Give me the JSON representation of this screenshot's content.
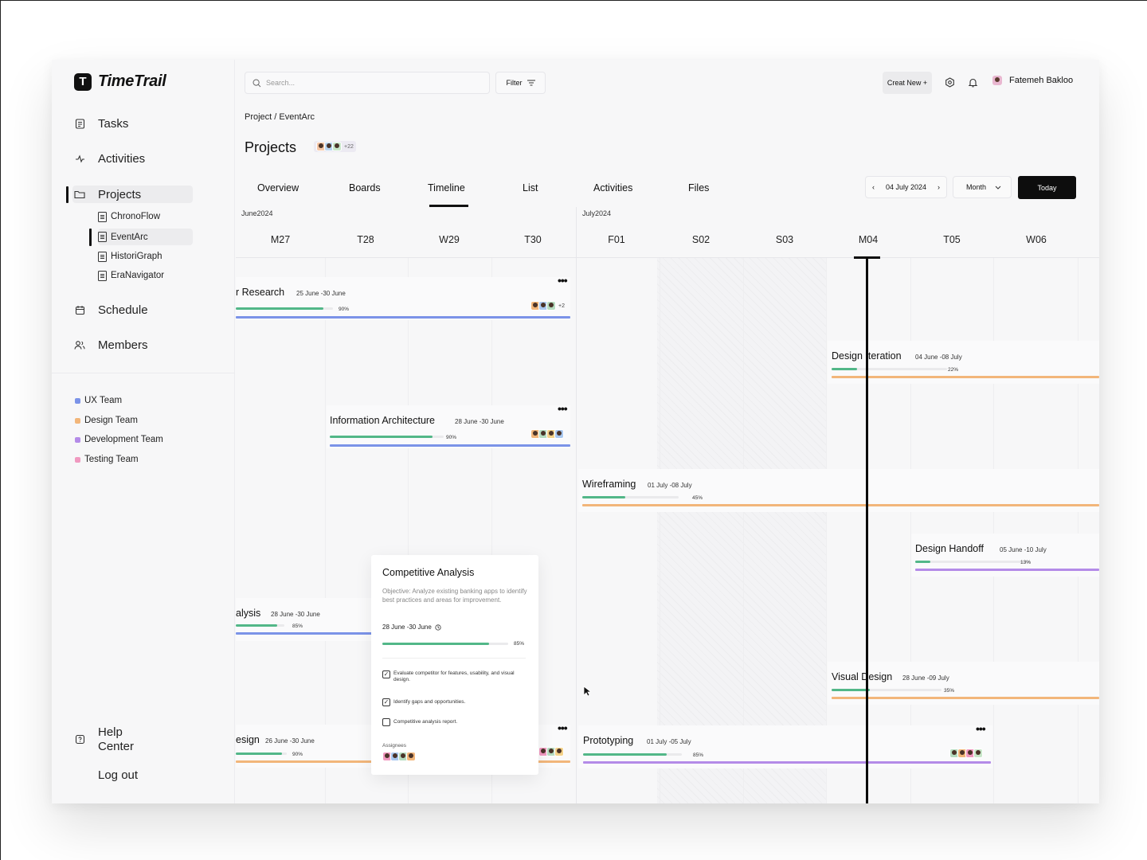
{
  "app": {
    "name": "TimeTrail",
    "logo_letter": "T"
  },
  "sidebar": {
    "nav": [
      {
        "label": "Tasks",
        "icon": "tasks-icon"
      },
      {
        "label": "Activities",
        "icon": "activity-icon"
      },
      {
        "label": "Projects",
        "icon": "folder-icon",
        "active": true
      },
      {
        "label": "Schedule",
        "icon": "calendar-icon"
      },
      {
        "label": "Members",
        "icon": "members-icon"
      }
    ],
    "projects": [
      {
        "label": "ChronoFlow"
      },
      {
        "label": "EventArc",
        "active": true
      },
      {
        "label": "HistoriGraph"
      },
      {
        "label": "EraNavigator"
      }
    ],
    "teams": [
      {
        "label": "UX Team",
        "color": "#7b93e8"
      },
      {
        "label": "Design Team",
        "color": "#f2b67a"
      },
      {
        "label": "Development Team",
        "color": "#b48be8"
      },
      {
        "label": "Testing Team",
        "color": "#f099c0"
      }
    ],
    "help_line1": "Help",
    "help_line2": "Center",
    "logout": "Log out"
  },
  "header": {
    "search_placeholder": "Search...",
    "filter_label": "Filter",
    "create_label": "Creat New +",
    "user_name": "Fatemeh Bakloo"
  },
  "breadcrumb": "Project / EventArc",
  "page_title": "Projects",
  "project_members_more": "+22",
  "tabs": [
    "Overview",
    "Boards",
    "Timeline",
    "List",
    "Activities",
    "Files"
  ],
  "active_tab": "Timeline",
  "date_nav": {
    "label": "04 July 2024",
    "prev": "‹",
    "next": "›"
  },
  "view_select": "Month",
  "today_label": "Today",
  "timeline": {
    "months": [
      {
        "label": "June2024"
      },
      {
        "label": "July2024"
      }
    ],
    "days": [
      "M27",
      "T28",
      "W29",
      "T30",
      "F01",
      "S02",
      "S03",
      "M04",
      "T05",
      "W06"
    ],
    "today": "M04",
    "tasks": [
      {
        "title": "r Research",
        "dates": "25 June -30 June",
        "progress": 90,
        "pct_label": "90%",
        "team_color": "#7b93e8",
        "members_more": "+2"
      },
      {
        "title": "Information Architecture",
        "dates": "28 June -30 June",
        "progress": 90,
        "pct_label": "90%",
        "team_color": "#7b93e8"
      },
      {
        "title": "alysis",
        "dates": "28 June -30 June",
        "progress": 85,
        "pct_label": "85%",
        "team_color": "#7b93e8"
      },
      {
        "title": "esign",
        "dates": "26 June -30 June",
        "progress": 90,
        "pct_label": "90%",
        "team_color": "#f2b67a"
      },
      {
        "title": "Design Iteration",
        "dates": "04 June -08 July",
        "progress": 22,
        "pct_label": "22%",
        "team_color": "#f2b67a"
      },
      {
        "title": "Wireframing",
        "dates": "01 July -08 July",
        "progress": 45,
        "pct_label": "45%",
        "team_color": "#f2b67a"
      },
      {
        "title": "Design Handoff",
        "dates": "05 June -10 July",
        "progress": 13,
        "pct_label": "13%",
        "team_color": "#b48be8"
      },
      {
        "title": "Visual Design",
        "dates": "28 June -09 July",
        "progress": 35,
        "pct_label": "35%",
        "team_color": "#f2b67a"
      },
      {
        "title": "Prototyping",
        "dates": "01 July -05 July",
        "progress": 85,
        "pct_label": "85%",
        "team_color": "#b48be8"
      }
    ]
  },
  "popover": {
    "title": "Competitive Analysis",
    "description": "Objective: Analyze existing banking apps to identify best practices and areas for improvement.",
    "dates": "28 June -30 June",
    "progress": 85,
    "pct_label": "85%",
    "checklist": [
      {
        "label": "Evaluate competitor for features, usability, and visual design.",
        "done": true
      },
      {
        "label": "Identify gaps and opportunities.",
        "done": true
      },
      {
        "label": "Competitive analysis report.",
        "done": false
      }
    ],
    "assignees_label": "Assignees"
  },
  "colors": {
    "progress": "#52b788",
    "ux": "#7b93e8",
    "design": "#f2b67a",
    "dev": "#b48be8",
    "testing": "#f099c0"
  }
}
